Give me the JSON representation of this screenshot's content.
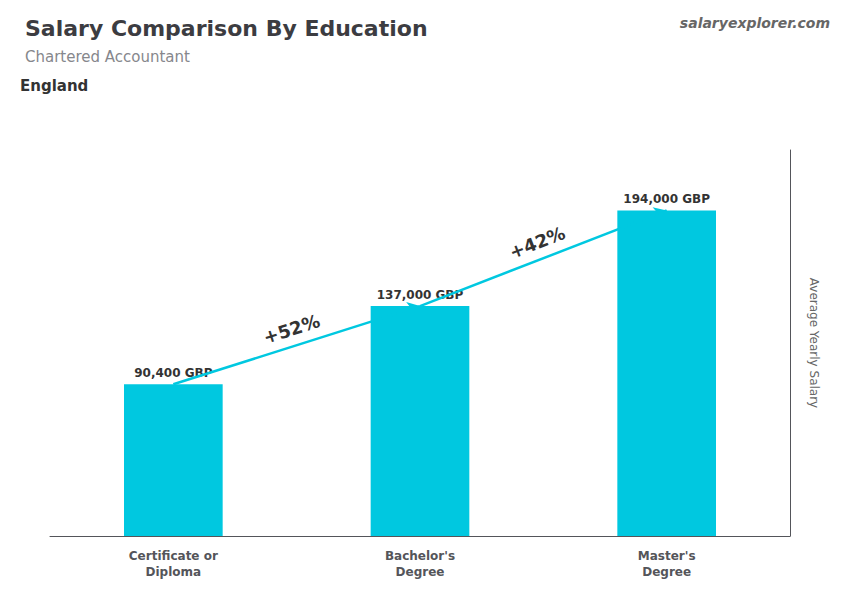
{
  "chart_data": {
    "type": "bar",
    "title": "Salary Comparison By Education",
    "subtitle": "Chartered Accountant",
    "annotations": [
      "England",
      "salary",
      "explorer",
      ".com"
    ],
    "ylabel": "Average Yearly Salary",
    "categories": [
      "Certificate or\nDiploma",
      "Bachelor's\nDegree",
      "Master's\nDegree"
    ],
    "values": [
      90400,
      137000,
      194000
    ],
    "value_labels": [
      "90,400 GBP",
      "137,000 GBP",
      "194,000 GBP"
    ],
    "data_labels": true,
    "change_labels": [
      "+52%",
      "+42%"
    ],
    "color": "#00c8e0",
    "ylim": [
      0,
      230000
    ],
    "yticks": [],
    "tick_labels": "x",
    "grid": false
  }
}
